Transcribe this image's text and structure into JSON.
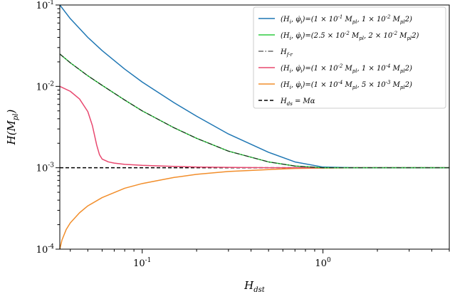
{
  "chart_data": {
    "type": "line",
    "title": "",
    "xlabel": "H_ds t",
    "ylabel": "H(M_pl)",
    "xscale": "log",
    "yscale": "log",
    "xlim": [
      0.035,
      5.0
    ],
    "ylim": [
      0.0001,
      0.1
    ],
    "legend_position": "top-right",
    "x_ticks": [
      {
        "value": 0.1,
        "label": "10^{-1}"
      },
      {
        "value": 1.0,
        "label": "10^{0}"
      }
    ],
    "y_ticks": [
      {
        "value": 0.0001,
        "label": "10^{-4}"
      },
      {
        "value": 0.001,
        "label": "10^{-3}"
      },
      {
        "value": 0.01,
        "label": "10^{-2}"
      },
      {
        "value": 0.1,
        "label": "10^{-1}"
      }
    ],
    "series": [
      {
        "name": "(H_i, φ̇_i)=(1 × 10^{-1} M_pl, 1 × 10^{-2} M_pl^2)",
        "color": "#1f77b4",
        "dash": "solid",
        "x": [
          0.035,
          0.04,
          0.05,
          0.06,
          0.08,
          0.1,
          0.15,
          0.2,
          0.3,
          0.5,
          0.7,
          1.0,
          1.5,
          2.0,
          3.0,
          5.0
        ],
        "y": [
          0.1,
          0.068,
          0.04,
          0.0275,
          0.0163,
          0.0113,
          0.0063,
          0.0043,
          0.0026,
          0.00155,
          0.00118,
          0.00102,
          0.001,
          0.001,
          0.001,
          0.001
        ]
      },
      {
        "name": "(H_i, φ̇_i)=(2.5 × 10^{-2} M_pl, 2 × 10^{-2} M_pl^2)",
        "color": "#2ecc40",
        "dash": "solid",
        "x": [
          0.035,
          0.04,
          0.05,
          0.06,
          0.08,
          0.1,
          0.15,
          0.2,
          0.3,
          0.5,
          0.7,
          1.0,
          1.5,
          2.0,
          3.0,
          5.0
        ],
        "y": [
          0.025,
          0.0195,
          0.0135,
          0.0103,
          0.0068,
          0.005,
          0.0031,
          0.0023,
          0.0016,
          0.00118,
          0.00105,
          0.001,
          0.001,
          0.001,
          0.001,
          0.001
        ]
      },
      {
        "name": "H_{f-r}",
        "color": "#222222",
        "dash": "dashdot",
        "x": [
          0.035,
          0.04,
          0.05,
          0.06,
          0.08,
          0.1,
          0.15,
          0.2,
          0.3,
          0.5,
          0.7,
          1.0,
          1.5,
          2.0,
          3.0,
          5.0
        ],
        "y": [
          0.025,
          0.0195,
          0.0135,
          0.0103,
          0.0068,
          0.005,
          0.0031,
          0.0023,
          0.0016,
          0.00118,
          0.00105,
          0.001,
          0.001,
          0.001,
          0.001,
          0.001
        ]
      },
      {
        "name": "(H_i, φ̇_i)=(1 × 10^{-2} M_pl, 1 × 10^{-4} M_pl^2)",
        "color": "#e8486f",
        "dash": "solid",
        "x": [
          0.035,
          0.04,
          0.045,
          0.05,
          0.053,
          0.056,
          0.058,
          0.06,
          0.065,
          0.07,
          0.08,
          0.1,
          0.15,
          0.2,
          0.3,
          0.5,
          1.0,
          5.0
        ],
        "y": [
          0.01,
          0.0087,
          0.007,
          0.0049,
          0.0033,
          0.0019,
          0.00145,
          0.00128,
          0.00118,
          0.00114,
          0.0011,
          0.00107,
          0.00104,
          0.00102,
          0.00101,
          0.001,
          0.001,
          0.001
        ]
      },
      {
        "name": "(H_i, φ̇_i)=(1 × 10^{-4} M_pl, 5 × 10^{-3} M_pl^2)",
        "color": "#f28e2b",
        "dash": "solid",
        "x": [
          0.035,
          0.036,
          0.038,
          0.04,
          0.045,
          0.05,
          0.06,
          0.08,
          0.1,
          0.15,
          0.2,
          0.3,
          0.5,
          0.7,
          1.0,
          1.5,
          2.0,
          5.0
        ],
        "y": [
          0.0001,
          0.00013,
          0.000175,
          0.00021,
          0.00028,
          0.00034,
          0.00043,
          0.00056,
          0.00064,
          0.00076,
          0.00083,
          0.0009,
          0.00095,
          0.00098,
          0.00099,
          0.001,
          0.001,
          0.001
        ]
      },
      {
        "name": "H_{ds} = Mα",
        "color": "#000000",
        "dash": "dashed",
        "x": [
          0.035,
          5.0
        ],
        "y": [
          0.001,
          0.001
        ]
      }
    ]
  }
}
